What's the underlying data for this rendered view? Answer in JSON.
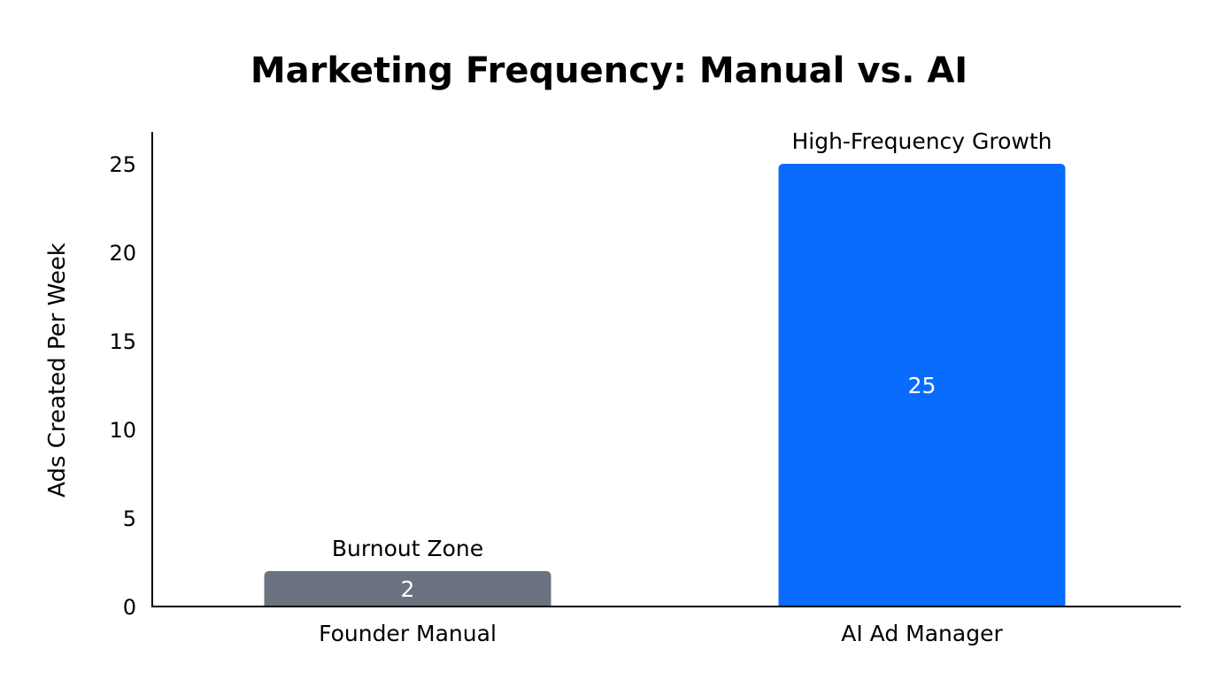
{
  "chart_data": {
    "type": "bar",
    "title": "Marketing Frequency: Manual vs. AI",
    "xlabel": "",
    "ylabel": "Ads Created Per Week",
    "categories": [
      "Founder Manual",
      "AI Ad Manager"
    ],
    "values": [
      2,
      25
    ],
    "data_labels": [
      "2",
      "25"
    ],
    "annotations": [
      "Burnout Zone",
      "High-Frequency Growth"
    ],
    "colors": [
      "#6b7280",
      "#0a6cff"
    ],
    "ylim": [
      0,
      26.8
    ],
    "yticks": [
      0,
      5,
      10,
      15,
      20,
      25
    ],
    "grid": false,
    "legend": "none"
  }
}
